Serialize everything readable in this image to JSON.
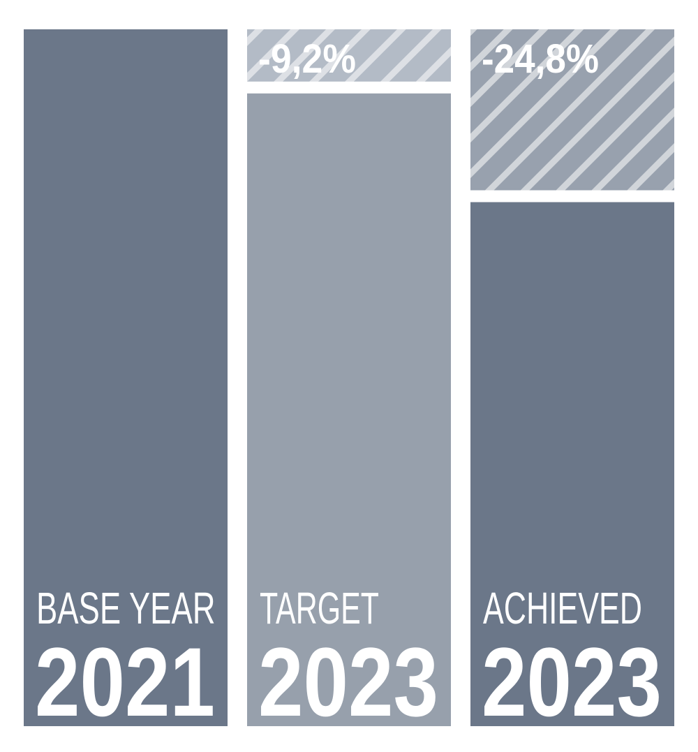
{
  "chart_data": {
    "type": "bar",
    "categories": [
      "BASE YEAR",
      "TARGET",
      "ACHIEVED"
    ],
    "years": [
      "2021",
      "2023",
      "2023"
    ],
    "values": [
      100,
      90.8,
      75.2
    ],
    "reductions": [
      null,
      -9.2,
      -24.8
    ],
    "reduction_labels": [
      null,
      "-9,2%",
      "-24,8%"
    ],
    "colors": [
      "#6b7789",
      "#97a0ac",
      "#6b7789"
    ],
    "hatch_colors": [
      null,
      "#b3bbc6",
      "#98a1ae"
    ],
    "ylim": [
      0,
      100
    ]
  }
}
